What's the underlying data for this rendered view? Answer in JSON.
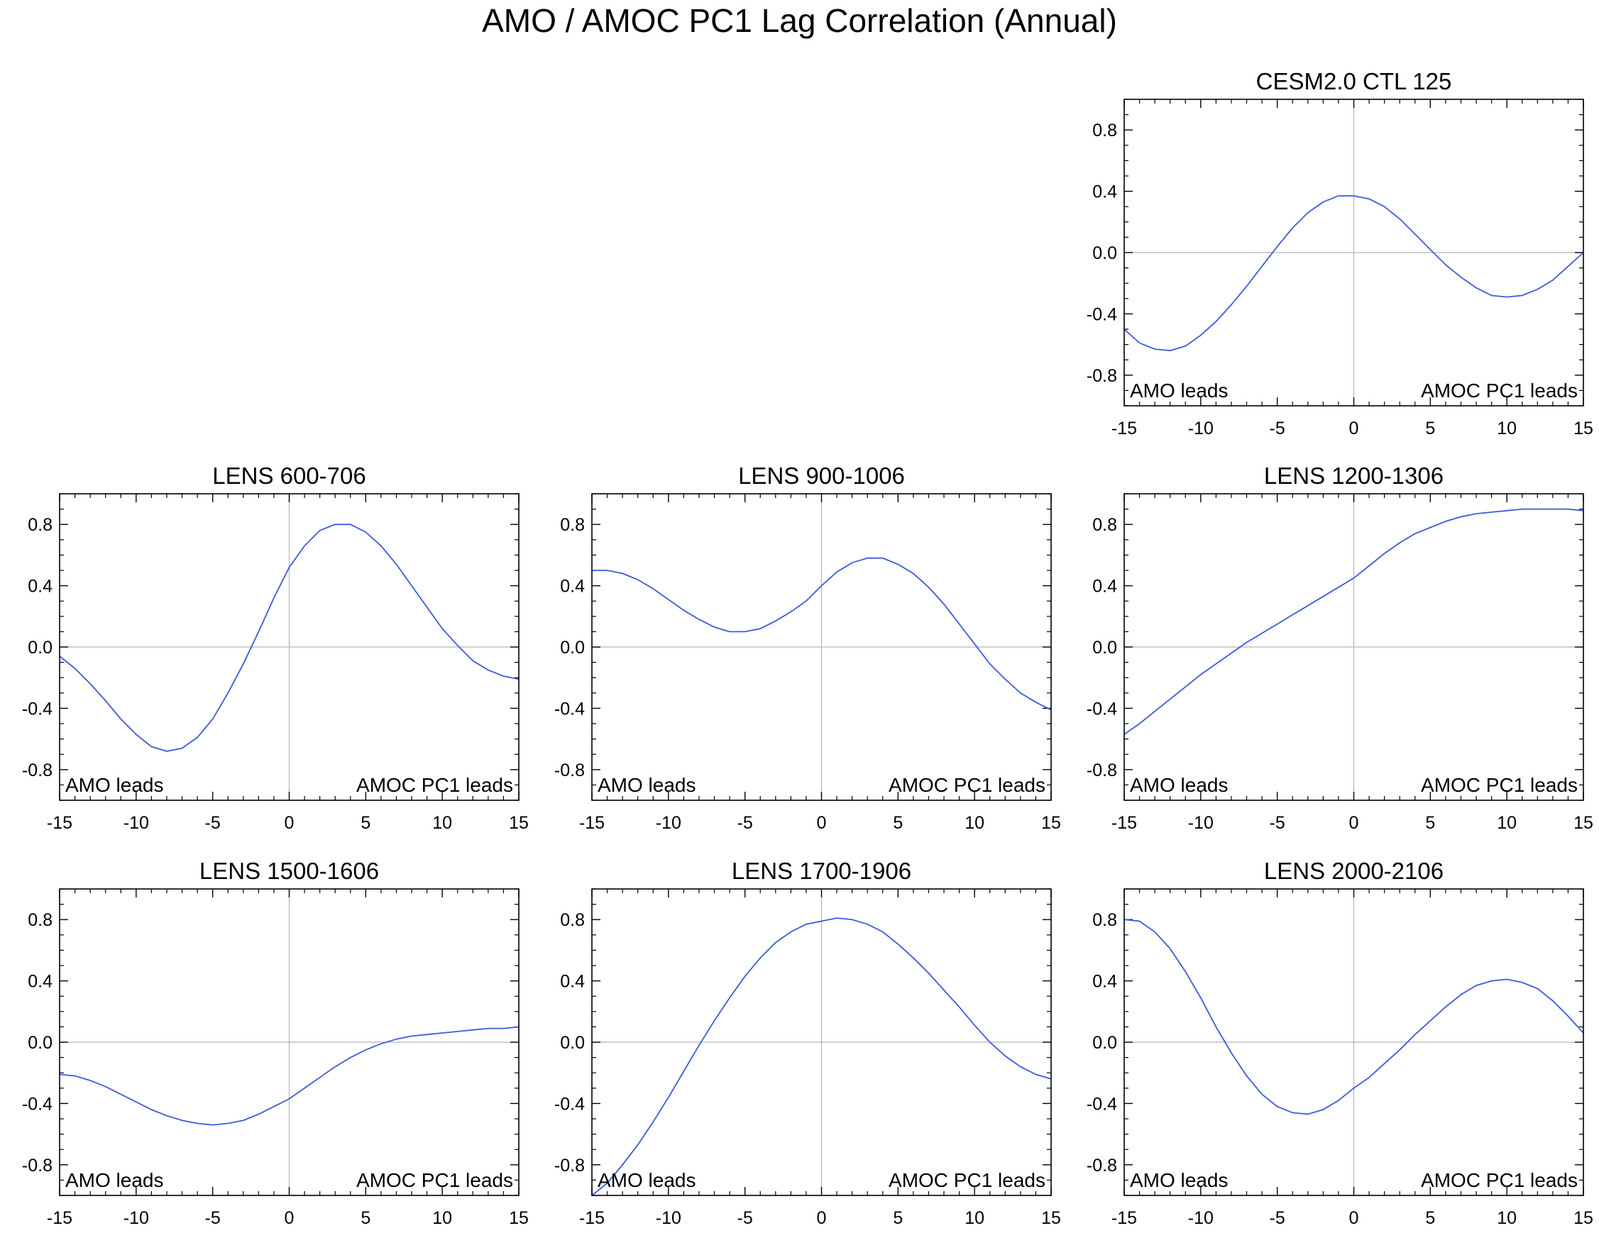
{
  "figure_title": "AMO / AMOC PC1 Lag Correlation (Annual)",
  "line_color": "#3B5BDB",
  "chart_data": [
    {
      "type": "line",
      "title": "CESM2.0 CTL 125",
      "xlim": [
        -15,
        15
      ],
      "ylim": [
        -1,
        1
      ],
      "xticks": [
        -15,
        -10,
        -5,
        0,
        5,
        10,
        15
      ],
      "xtick_labels": [
        "-15",
        "-10",
        "-5",
        "0",
        "5",
        "10",
        "15"
      ],
      "yticks": [
        -0.8,
        -0.4,
        0.0,
        0.4,
        0.8
      ],
      "ytick_labels": [
        "-0.8",
        "-0.4",
        "0.0",
        "0.4",
        "0.8"
      ],
      "left_annotation": "AMO leads",
      "right_annotation": "AMOC PC1 leads",
      "x": [
        -15,
        -14,
        -13,
        -12,
        -11,
        -10,
        -9,
        -8,
        -7,
        -6,
        -5,
        -4,
        -3,
        -2,
        -1,
        0,
        1,
        2,
        3,
        4,
        5,
        6,
        7,
        8,
        9,
        10,
        11,
        12,
        13,
        14,
        15
      ],
      "y": [
        -0.5,
        -0.59,
        -0.63,
        -0.64,
        -0.61,
        -0.54,
        -0.45,
        -0.34,
        -0.22,
        -0.09,
        0.04,
        0.16,
        0.26,
        0.33,
        0.37,
        0.37,
        0.35,
        0.3,
        0.22,
        0.12,
        0.02,
        -0.08,
        -0.16,
        -0.23,
        -0.28,
        -0.29,
        -0.28,
        -0.24,
        -0.18,
        -0.09,
        0.0
      ]
    },
    {
      "type": "line",
      "title": "LENS 600-706",
      "xlim": [
        -15,
        15
      ],
      "ylim": [
        -1,
        1
      ],
      "xticks": [
        -15,
        -10,
        -5,
        0,
        5,
        10,
        15
      ],
      "xtick_labels": [
        "-15",
        "-10",
        "-5",
        "0",
        "5",
        "10",
        "15"
      ],
      "yticks": [
        -0.8,
        -0.4,
        0.0,
        0.4,
        0.8
      ],
      "ytick_labels": [
        "-0.8",
        "-0.4",
        "0.0",
        "0.4",
        "0.8"
      ],
      "left_annotation": "AMO leads",
      "right_annotation": "AMOC PC1 leads",
      "x": [
        -15,
        -14,
        -13,
        -12,
        -11,
        -10,
        -9,
        -8,
        -7,
        -6,
        -5,
        -4,
        -3,
        -2,
        -1,
        0,
        1,
        2,
        3,
        4,
        5,
        6,
        7,
        8,
        9,
        10,
        11,
        12,
        13,
        14,
        15
      ],
      "y": [
        -0.06,
        -0.14,
        -0.24,
        -0.35,
        -0.47,
        -0.57,
        -0.65,
        -0.68,
        -0.66,
        -0.59,
        -0.47,
        -0.3,
        -0.11,
        0.1,
        0.32,
        0.52,
        0.66,
        0.76,
        0.8,
        0.8,
        0.75,
        0.66,
        0.54,
        0.4,
        0.26,
        0.12,
        0.01,
        -0.09,
        -0.15,
        -0.19,
        -0.21
      ]
    },
    {
      "type": "line",
      "title": "LENS 900-1006",
      "xlim": [
        -15,
        15
      ],
      "ylim": [
        -1,
        1
      ],
      "xticks": [
        -15,
        -10,
        -5,
        0,
        5,
        10,
        15
      ],
      "xtick_labels": [
        "-15",
        "-10",
        "-5",
        "0",
        "5",
        "10",
        "15"
      ],
      "yticks": [
        -0.8,
        -0.4,
        0.0,
        0.4,
        0.8
      ],
      "ytick_labels": [
        "-0.8",
        "-0.4",
        "0.0",
        "0.4",
        "0.8"
      ],
      "left_annotation": "AMO leads",
      "right_annotation": "AMOC PC1 leads",
      "x": [
        -15,
        -14,
        -13,
        -12,
        -11,
        -10,
        -9,
        -8,
        -7,
        -6,
        -5,
        -4,
        -3,
        -2,
        -1,
        0,
        1,
        2,
        3,
        4,
        5,
        6,
        7,
        8,
        9,
        10,
        11,
        12,
        13,
        14,
        15
      ],
      "y": [
        0.5,
        0.5,
        0.48,
        0.44,
        0.38,
        0.31,
        0.24,
        0.18,
        0.13,
        0.1,
        0.1,
        0.12,
        0.17,
        0.23,
        0.3,
        0.4,
        0.49,
        0.55,
        0.58,
        0.58,
        0.54,
        0.48,
        0.39,
        0.28,
        0.15,
        0.02,
        -0.11,
        -0.21,
        -0.3,
        -0.36,
        -0.41
      ]
    },
    {
      "type": "line",
      "title": "LENS 1200-1306",
      "xlim": [
        -15,
        15
      ],
      "ylim": [
        -1,
        1
      ],
      "xticks": [
        -15,
        -10,
        -5,
        0,
        5,
        10,
        15
      ],
      "xtick_labels": [
        "-15",
        "-10",
        "-5",
        "0",
        "5",
        "10",
        "15"
      ],
      "yticks": [
        -0.8,
        -0.4,
        0.0,
        0.4,
        0.8
      ],
      "ytick_labels": [
        "-0.8",
        "-0.4",
        "0.0",
        "0.4",
        "0.8"
      ],
      "left_annotation": "AMO leads",
      "right_annotation": "AMOC PC1 leads",
      "x": [
        -15,
        -14,
        -13,
        -12,
        -11,
        -10,
        -9,
        -8,
        -7,
        -6,
        -5,
        -4,
        -3,
        -2,
        -1,
        0,
        1,
        2,
        3,
        4,
        5,
        6,
        7,
        8,
        9,
        10,
        11,
        12,
        13,
        14,
        15
      ],
      "y": [
        -0.57,
        -0.5,
        -0.42,
        -0.34,
        -0.26,
        -0.18,
        -0.11,
        -0.04,
        0.03,
        0.09,
        0.15,
        0.21,
        0.27,
        0.33,
        0.39,
        0.45,
        0.53,
        0.61,
        0.68,
        0.74,
        0.78,
        0.82,
        0.85,
        0.87,
        0.88,
        0.89,
        0.9,
        0.9,
        0.9,
        0.9,
        0.89
      ]
    },
    {
      "type": "line",
      "title": "LENS 1500-1606",
      "xlim": [
        -15,
        15
      ],
      "ylim": [
        -1,
        1
      ],
      "xticks": [
        -15,
        -10,
        -5,
        0,
        5,
        10,
        15
      ],
      "xtick_labels": [
        "-15",
        "-10",
        "-5",
        "0",
        "5",
        "10",
        "15"
      ],
      "yticks": [
        -0.8,
        -0.4,
        0.0,
        0.4,
        0.8
      ],
      "ytick_labels": [
        "-0.8",
        "-0.4",
        "0.0",
        "0.4",
        "0.8"
      ],
      "left_annotation": "AMO leads",
      "right_annotation": "AMOC PC1 leads",
      "x": [
        -15,
        -14,
        -13,
        -12,
        -11,
        -10,
        -9,
        -8,
        -7,
        -6,
        -5,
        -4,
        -3,
        -2,
        -1,
        0,
        1,
        2,
        3,
        4,
        5,
        6,
        7,
        8,
        9,
        10,
        11,
        12,
        13,
        14,
        15
      ],
      "y": [
        -0.21,
        -0.22,
        -0.25,
        -0.29,
        -0.34,
        -0.39,
        -0.44,
        -0.48,
        -0.51,
        -0.53,
        -0.54,
        -0.53,
        -0.51,
        -0.47,
        -0.42,
        -0.37,
        -0.3,
        -0.23,
        -0.16,
        -0.1,
        -0.05,
        -0.01,
        0.02,
        0.04,
        0.05,
        0.06,
        0.07,
        0.08,
        0.09,
        0.09,
        0.1
      ]
    },
    {
      "type": "line",
      "title": "LENS 1700-1906",
      "xlim": [
        -15,
        15
      ],
      "ylim": [
        -1,
        1
      ],
      "xticks": [
        -15,
        -10,
        -5,
        0,
        5,
        10,
        15
      ],
      "xtick_labels": [
        "-15",
        "-10",
        "-5",
        "0",
        "5",
        "10",
        "15"
      ],
      "yticks": [
        -0.8,
        -0.4,
        0.0,
        0.4,
        0.8
      ],
      "ytick_labels": [
        "-0.8",
        "-0.4",
        "0.0",
        "0.4",
        "0.8"
      ],
      "left_annotation": "AMO leads",
      "right_annotation": "AMOC PC1 leads",
      "x": [
        -15,
        -14,
        -13,
        -12,
        -11,
        -10,
        -9,
        -8,
        -7,
        -6,
        -5,
        -4,
        -3,
        -2,
        -1,
        0,
        1,
        2,
        3,
        4,
        5,
        6,
        7,
        8,
        9,
        10,
        11,
        12,
        13,
        14,
        15
      ],
      "y": [
        -1.0,
        -0.92,
        -0.8,
        -0.67,
        -0.52,
        -0.36,
        -0.19,
        -0.02,
        0.14,
        0.29,
        0.43,
        0.55,
        0.65,
        0.72,
        0.77,
        0.79,
        0.81,
        0.8,
        0.77,
        0.72,
        0.64,
        0.55,
        0.45,
        0.34,
        0.23,
        0.11,
        0.0,
        -0.09,
        -0.16,
        -0.21,
        -0.24
      ]
    },
    {
      "type": "line",
      "title": "LENS 2000-2106",
      "xlim": [
        -15,
        15
      ],
      "ylim": [
        -1,
        1
      ],
      "xticks": [
        -15,
        -10,
        -5,
        0,
        5,
        10,
        15
      ],
      "xtick_labels": [
        "-15",
        "-10",
        "-5",
        "0",
        "5",
        "10",
        "15"
      ],
      "yticks": [
        -0.8,
        -0.4,
        0.0,
        0.4,
        0.8
      ],
      "ytick_labels": [
        "-0.8",
        "-0.4",
        "0.0",
        "0.4",
        "0.8"
      ],
      "left_annotation": "AMO leads",
      "right_annotation": "AMOC PC1 leads",
      "x": [
        -15,
        -14,
        -13,
        -12,
        -11,
        -10,
        -9,
        -8,
        -7,
        -6,
        -5,
        -4,
        -3,
        -2,
        -1,
        0,
        1,
        2,
        3,
        4,
        5,
        6,
        7,
        8,
        9,
        10,
        11,
        12,
        13,
        14,
        15
      ],
      "y": [
        0.8,
        0.79,
        0.72,
        0.61,
        0.46,
        0.29,
        0.1,
        -0.07,
        -0.22,
        -0.34,
        -0.42,
        -0.46,
        -0.47,
        -0.44,
        -0.38,
        -0.3,
        -0.23,
        -0.14,
        -0.05,
        0.05,
        0.14,
        0.23,
        0.31,
        0.37,
        0.4,
        0.41,
        0.39,
        0.35,
        0.27,
        0.17,
        0.06
      ]
    }
  ]
}
